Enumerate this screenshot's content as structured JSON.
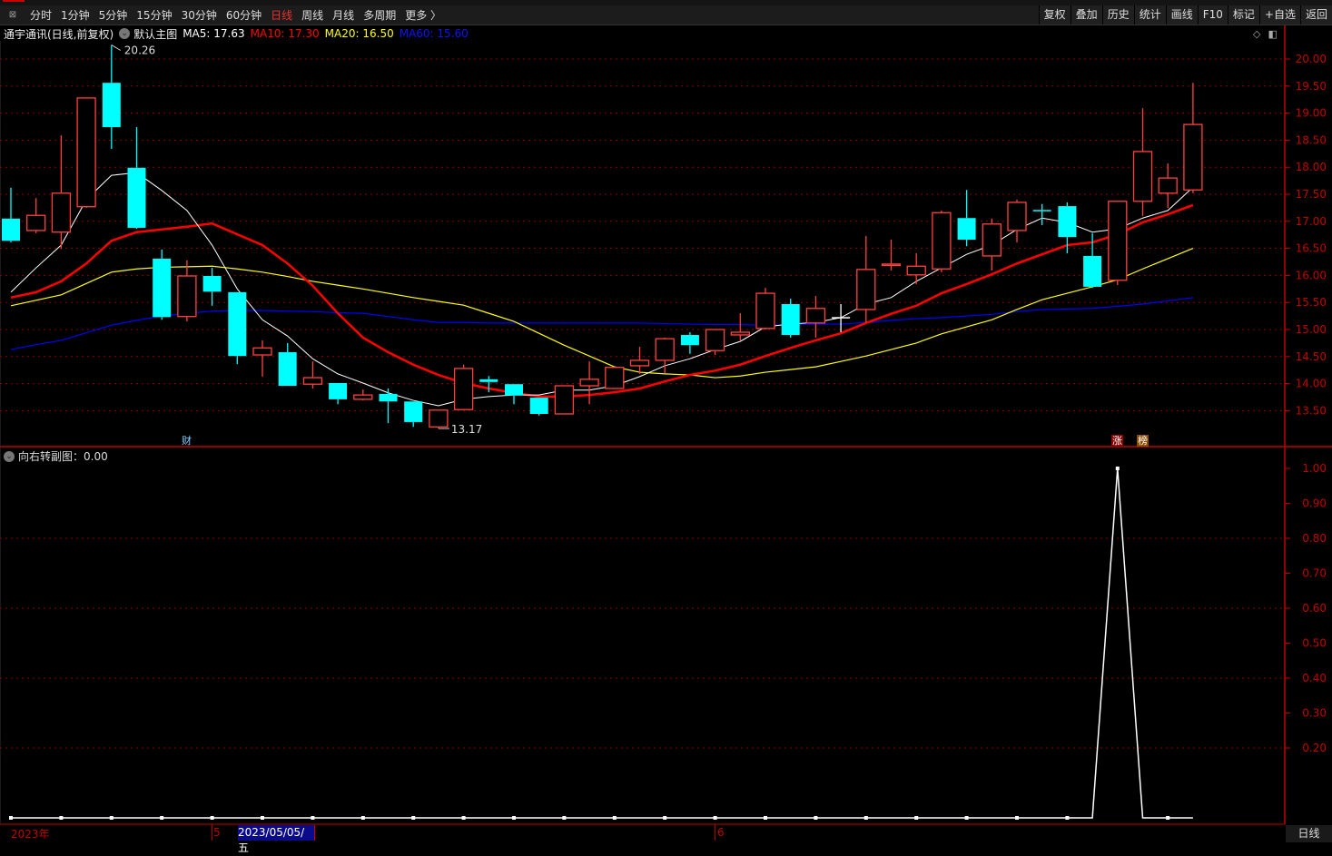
{
  "toolbar": {
    "periods": [
      "分时",
      "1分钟",
      "5分钟",
      "15分钟",
      "30分钟",
      "60分钟",
      "日线",
      "周线",
      "月线",
      "多周期",
      "更多 〉"
    ],
    "active_period": "日线",
    "actions": [
      "复权",
      "叠加",
      "历史",
      "统计",
      "画线",
      "F10",
      "标记",
      "+自选",
      "返回"
    ]
  },
  "legend": {
    "title": "通宇通讯(日线,前复权)",
    "main_chart": "默认主图",
    "ma5": "MA5: 17.63",
    "ma10": "MA10: 17.30",
    "ma20": "MA20: 16.50",
    "ma60": "MA60: 15.60"
  },
  "colors": {
    "up": "#ff4040",
    "down": "#00ffff",
    "flat": "#ffffff",
    "ma5": "#ffffff",
    "ma10": "#ff0000",
    "ma20": "#ffff00",
    "ma60": "#0000ff",
    "axis": "#c00000",
    "grid": "#8a0000"
  },
  "annotations": {
    "high": "20.26",
    "low": "13.17"
  },
  "markers": {
    "cai": "财",
    "zhang": "涨",
    "bang": "榜"
  },
  "subchart": {
    "title": "向右转副图：0.00",
    "values_index_1": 44
  },
  "x_axis": {
    "year": "2023年",
    "may": "5",
    "selected_date": "2023/05/05/五",
    "june": "6",
    "period": "日线"
  },
  "chart_data": [
    {
      "type": "candlestick",
      "y_ticks": [
        "20.00",
        "19.50",
        "19.00",
        "18.50",
        "18.00",
        "17.50",
        "17.00",
        "16.50",
        "16.00",
        "15.50",
        "15.00",
        "14.50",
        "14.00",
        "13.50"
      ],
      "ylim": [
        13.0,
        20.4
      ],
      "candles": [
        {
          "o": 17.05,
          "h": 17.62,
          "l": 16.61,
          "c": 16.64
        },
        {
          "o": 16.83,
          "h": 17.43,
          "l": 16.78,
          "c": 17.11
        },
        {
          "o": 16.8,
          "h": 18.59,
          "l": 16.49,
          "c": 17.52
        },
        {
          "o": 17.27,
          "h": 19.28,
          "l": 17.25,
          "c": 19.28
        },
        {
          "o": 19.56,
          "h": 20.26,
          "l": 18.34,
          "c": 18.74
        },
        {
          "o": 17.99,
          "h": 18.74,
          "l": 16.86,
          "c": 16.88
        },
        {
          "o": 16.31,
          "h": 16.48,
          "l": 15.18,
          "c": 15.23
        },
        {
          "o": 15.24,
          "h": 16.28,
          "l": 15.15,
          "c": 15.99
        },
        {
          "o": 15.99,
          "h": 16.14,
          "l": 15.44,
          "c": 15.7
        },
        {
          "o": 15.69,
          "h": 15.69,
          "l": 14.36,
          "c": 14.51
        },
        {
          "o": 14.53,
          "h": 14.8,
          "l": 14.13,
          "c": 14.66
        },
        {
          "o": 14.58,
          "h": 14.75,
          "l": 13.96,
          "c": 13.96
        },
        {
          "o": 13.99,
          "h": 14.41,
          "l": 13.91,
          "c": 14.11
        },
        {
          "o": 14.01,
          "h": 14.01,
          "l": 13.62,
          "c": 13.71
        },
        {
          "o": 13.71,
          "h": 13.89,
          "l": 13.69,
          "c": 13.79
        },
        {
          "o": 13.81,
          "h": 13.91,
          "l": 13.27,
          "c": 13.67
        },
        {
          "o": 13.67,
          "h": 13.67,
          "l": 13.2,
          "c": 13.29
        },
        {
          "o": 13.2,
          "h": 13.51,
          "l": 13.17,
          "c": 13.51
        },
        {
          "o": 13.52,
          "h": 14.35,
          "l": 13.52,
          "c": 14.28
        },
        {
          "o": 14.08,
          "h": 14.14,
          "l": 13.84,
          "c": 14.03
        },
        {
          "o": 13.99,
          "h": 13.99,
          "l": 13.62,
          "c": 13.78
        },
        {
          "o": 13.74,
          "h": 13.74,
          "l": 13.41,
          "c": 13.44
        },
        {
          "o": 13.44,
          "h": 13.96,
          "l": 13.44,
          "c": 13.96
        },
        {
          "o": 13.96,
          "h": 14.41,
          "l": 13.62,
          "c": 14.08
        },
        {
          "o": 13.91,
          "h": 14.3,
          "l": 13.91,
          "c": 14.3
        },
        {
          "o": 14.33,
          "h": 14.68,
          "l": 14.18,
          "c": 14.43
        },
        {
          "o": 14.43,
          "h": 14.85,
          "l": 14.19,
          "c": 14.83
        },
        {
          "o": 14.9,
          "h": 14.95,
          "l": 14.55,
          "c": 14.71
        },
        {
          "o": 14.61,
          "h": 15.0,
          "l": 14.53,
          "c": 15.0
        },
        {
          "o": 14.9,
          "h": 15.3,
          "l": 14.8,
          "c": 14.95
        },
        {
          "o": 15.02,
          "h": 15.77,
          "l": 15.0,
          "c": 15.67
        },
        {
          "o": 15.47,
          "h": 15.57,
          "l": 14.85,
          "c": 14.9
        },
        {
          "o": 15.12,
          "h": 15.62,
          "l": 14.85,
          "c": 15.39
        },
        {
          "o": 15.23,
          "h": 15.47,
          "l": 14.95,
          "c": 15.23
        },
        {
          "o": 15.37,
          "h": 16.73,
          "l": 15.13,
          "c": 16.11
        },
        {
          "o": 16.2,
          "h": 16.66,
          "l": 16.09,
          "c": 16.21
        },
        {
          "o": 16.01,
          "h": 16.41,
          "l": 15.84,
          "c": 16.17
        },
        {
          "o": 16.12,
          "h": 17.2,
          "l": 16.06,
          "c": 17.16
        },
        {
          "o": 17.06,
          "h": 17.58,
          "l": 16.54,
          "c": 16.66
        },
        {
          "o": 16.36,
          "h": 17.05,
          "l": 16.09,
          "c": 16.95
        },
        {
          "o": 16.83,
          "h": 17.4,
          "l": 16.61,
          "c": 17.35
        },
        {
          "o": 17.21,
          "h": 17.32,
          "l": 16.93,
          "c": 17.2
        },
        {
          "o": 17.28,
          "h": 17.35,
          "l": 16.41,
          "c": 16.71
        },
        {
          "o": 16.36,
          "h": 16.78,
          "l": 15.77,
          "c": 15.79
        },
        {
          "o": 15.91,
          "h": 17.37,
          "l": 15.82,
          "c": 17.37
        },
        {
          "o": 17.37,
          "h": 19.09,
          "l": 17.1,
          "c": 18.29
        },
        {
          "o": 17.52,
          "h": 18.07,
          "l": 17.25,
          "c": 17.8
        },
        {
          "o": 17.58,
          "h": 19.56,
          "l": 17.52,
          "c": 18.79
        }
      ],
      "ma5": [
        15.69,
        16.14,
        16.56,
        17.4,
        17.85,
        17.9,
        17.57,
        17.2,
        16.56,
        15.75,
        15.18,
        14.88,
        14.46,
        14.18,
        14.01,
        13.83,
        13.69,
        13.59,
        13.71,
        13.76,
        13.79,
        13.79,
        13.88,
        13.88,
        13.96,
        14.13,
        14.33,
        14.46,
        14.63,
        14.78,
        15.05,
        15.1,
        15.13,
        15.22,
        15.47,
        15.59,
        15.89,
        16.14,
        16.39,
        16.56,
        16.85,
        17.06,
        16.98,
        16.8,
        16.86,
        17.06,
        17.2,
        17.63
      ],
      "ma10": [
        15.59,
        15.69,
        15.89,
        16.22,
        16.64,
        16.8,
        16.85,
        16.9,
        16.96,
        16.76,
        16.56,
        16.22,
        15.81,
        15.3,
        14.85,
        14.58,
        14.35,
        14.16,
        14.01,
        13.91,
        13.83,
        13.76,
        13.76,
        13.79,
        13.84,
        13.91,
        14.04,
        14.16,
        14.24,
        14.35,
        14.51,
        14.66,
        14.8,
        14.93,
        15.12,
        15.29,
        15.44,
        15.67,
        15.84,
        16.02,
        16.22,
        16.39,
        16.56,
        16.61,
        16.76,
        16.98,
        17.13,
        17.3
      ],
      "ma20": [
        15.44,
        15.54,
        15.64,
        15.85,
        16.06,
        16.12,
        16.15,
        16.16,
        16.17,
        16.12,
        16.06,
        15.98,
        15.89,
        15.82,
        15.75,
        15.67,
        15.59,
        15.52,
        15.45,
        15.3,
        15.15,
        14.93,
        14.71,
        14.51,
        14.31,
        14.21,
        14.18,
        14.16,
        14.11,
        14.14,
        14.21,
        14.26,
        14.31,
        14.41,
        14.51,
        14.63,
        14.75,
        14.92,
        15.05,
        15.18,
        15.37,
        15.55,
        15.67,
        15.79,
        15.92,
        16.12,
        16.31,
        16.5
      ],
      "ma60": [
        14.63,
        14.72,
        14.8,
        14.94,
        15.08,
        15.17,
        15.25,
        15.3,
        15.34,
        15.35,
        15.35,
        15.34,
        15.33,
        15.31,
        15.3,
        15.24,
        15.18,
        15.13,
        15.13,
        15.12,
        15.12,
        15.12,
        15.12,
        15.12,
        15.12,
        15.12,
        15.11,
        15.1,
        15.09,
        15.09,
        15.08,
        15.09,
        15.1,
        15.1,
        15.13,
        15.17,
        15.2,
        15.22,
        15.25,
        15.28,
        15.33,
        15.37,
        15.38,
        15.39,
        15.43,
        15.47,
        15.53,
        15.59
      ]
    },
    {
      "type": "line",
      "y_ticks": [
        "1.00",
        "0.90",
        "0.80",
        "0.70",
        "0.60",
        "0.50",
        "0.40",
        "0.30",
        "0.20"
      ],
      "ylim": [
        0,
        1.0
      ],
      "values": [
        0,
        0,
        0,
        0,
        0,
        0,
        0,
        0,
        0,
        0,
        0,
        0,
        0,
        0,
        0,
        0,
        0,
        0,
        0,
        0,
        0,
        0,
        0,
        0,
        0,
        0,
        0,
        0,
        0,
        0,
        0,
        0,
        0,
        0,
        0,
        0,
        0,
        0,
        0,
        0,
        0,
        0,
        0,
        0,
        1,
        0,
        0,
        0
      ]
    }
  ]
}
